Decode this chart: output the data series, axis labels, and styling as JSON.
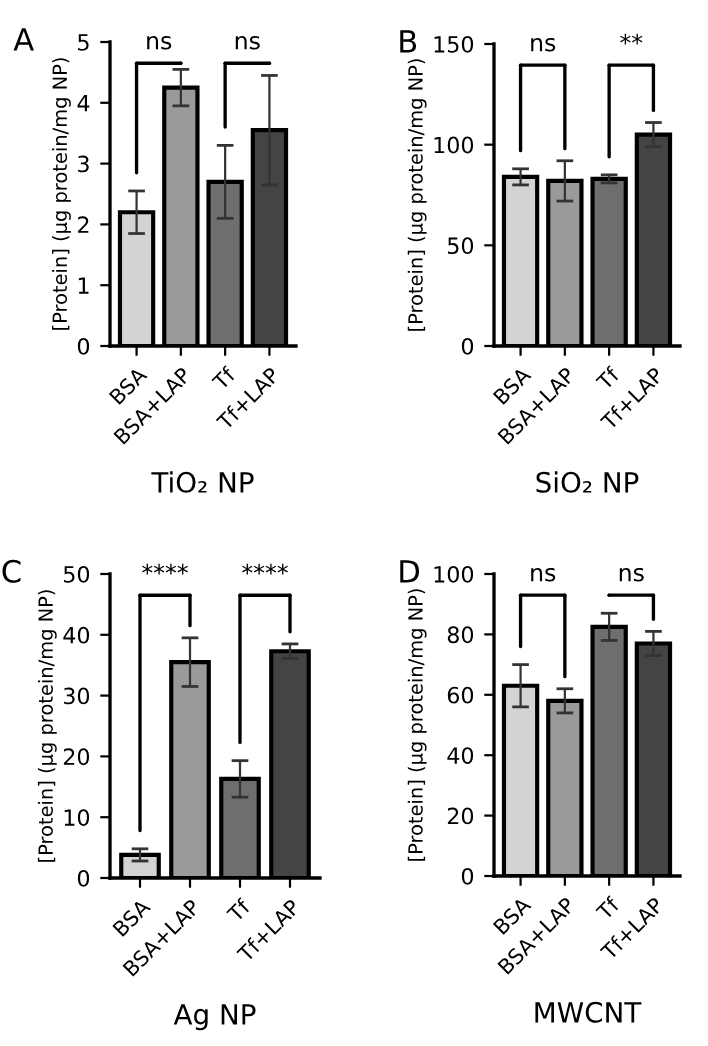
{
  "chart_data": [
    {
      "type": "bar",
      "xlabel": "TiO₂ NP",
      "ylabel": "[Protein] (µg protein/mg NP)",
      "categories": [
        "BSA",
        "BSA+LAP",
        "Tf",
        "Tf+LAP"
      ],
      "values": [
        2.2,
        4.25,
        2.7,
        3.55
      ],
      "errors": [
        0.35,
        0.3,
        0.6,
        0.9
      ],
      "colors": [
        "#d3d3d3",
        "#9a9a9a",
        "#6e6e6e",
        "#444444"
      ],
      "ylim": [
        0,
        5
      ],
      "yticks": [
        0,
        1,
        2,
        3,
        4,
        5
      ],
      "grid": false,
      "annotations": [
        "A",
        "ns",
        "ns"
      ]
    },
    {
      "type": "bar",
      "xlabel": "SiO₂ NP",
      "ylabel": "[Protein] (µg protein/mg NP)",
      "categories": [
        "BSA",
        "BSA+LAP",
        "Tf",
        "Tf+LAP"
      ],
      "values": [
        84,
        82,
        83,
        105
      ],
      "errors": [
        4,
        10,
        2,
        6
      ],
      "colors": [
        "#d3d3d3",
        "#9a9a9a",
        "#6e6e6e",
        "#444444"
      ],
      "ylim": [
        0,
        150
      ],
      "yticks": [
        0,
        50,
        100,
        150
      ],
      "grid": false,
      "annotations": [
        "B",
        "ns",
        "**"
      ]
    },
    {
      "type": "bar",
      "xlabel": "Ag NP",
      "ylabel": "[Protein] (µg protein/mg NP)",
      "categories": [
        "BSA",
        "BSA+LAP",
        "Tf",
        "Tf+LAP"
      ],
      "values": [
        3.8,
        35.5,
        16.3,
        37.3
      ],
      "errors": [
        1,
        4,
        3,
        1.2
      ],
      "colors": [
        "#d3d3d3",
        "#9a9a9a",
        "#6e6e6e",
        "#444444"
      ],
      "ylim": [
        0,
        50
      ],
      "yticks": [
        0,
        10,
        20,
        30,
        40,
        50
      ],
      "grid": false,
      "annotations": [
        "C",
        "****",
        "****"
      ]
    },
    {
      "type": "bar",
      "xlabel": "MWCNT",
      "ylabel": "[Protein] (µg protein/mg NP)",
      "categories": [
        "BSA",
        "BSA+LAP",
        "Tf",
        "Tf+LAP"
      ],
      "values": [
        63,
        58,
        82.5,
        77
      ],
      "errors": [
        7,
        4,
        4.5,
        4
      ],
      "colors": [
        "#d3d3d3",
        "#9a9a9a",
        "#6e6e6e",
        "#444444"
      ],
      "ylim": [
        0,
        100
      ],
      "yticks": [
        0,
        20,
        40,
        60,
        80,
        100
      ],
      "grid": false,
      "annotations": [
        "D",
        "ns",
        "ns"
      ]
    }
  ]
}
